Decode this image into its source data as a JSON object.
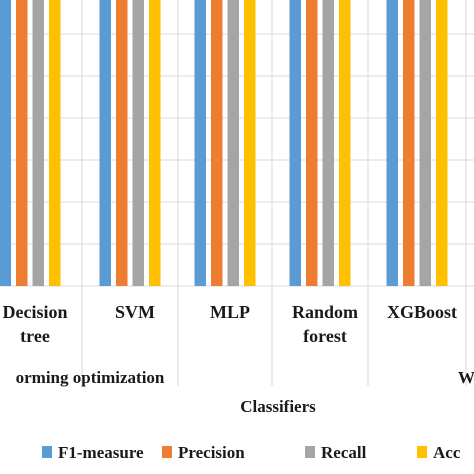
{
  "chart_data": {
    "type": "bar",
    "xlabel": "Classifiers",
    "ylabel": "",
    "ylim": [
      0,
      1
    ],
    "grid": "horizontal",
    "legend_position": "bottom",
    "categories": [
      "Decision tree",
      "SVM",
      "MLP",
      "Random forest",
      "XGBoost"
    ],
    "category_lines": [
      [
        "Decision",
        "tree"
      ],
      [
        "SVM"
      ],
      [
        "MLP"
      ],
      [
        "Random",
        "forest"
      ],
      [
        "XGBoost"
      ]
    ],
    "group_labels": [
      "orming optimization",
      "W"
    ],
    "series": [
      {
        "name": "F1-measure",
        "color": "#5b9bd5",
        "values": [
          0.857,
          0.878,
          0.9,
          0.898,
          0.925
        ]
      },
      {
        "name": "Precision",
        "color": "#ed7d31",
        "values": [
          0.859,
          0.868,
          0.9,
          0.866,
          0.902
        ]
      },
      {
        "name": "Recall",
        "color": "#a5a5a5",
        "values": [
          0.866,
          0.881,
          0.914,
          0.9,
          0.906
        ]
      },
      {
        "name": "Acc",
        "color": "#ffc000",
        "values": [
          0.803,
          0.835,
          0.848,
          0.916,
          0.937
        ]
      }
    ]
  }
}
